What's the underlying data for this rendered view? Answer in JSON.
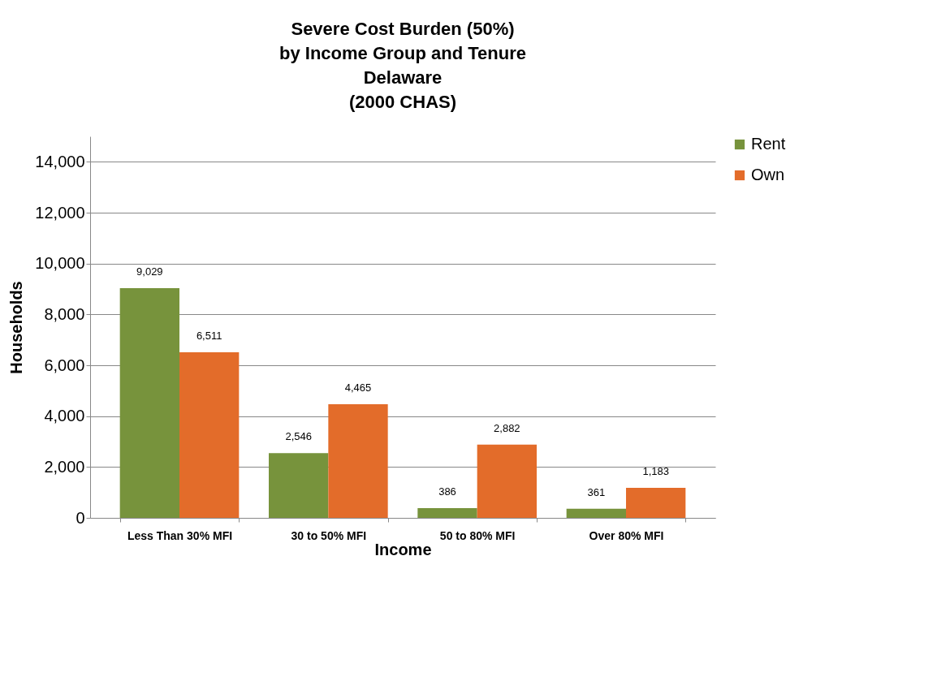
{
  "chart_data": {
    "type": "bar",
    "title": "Severe Cost Burden (50%)\nby Income Group and Tenure\nDelaware\n(2000 CHAS)",
    "xlabel": "Income",
    "ylabel": "Households",
    "categories": [
      "Less Than 30% MFI",
      "30 to 50% MFI",
      "50 to 80% MFI",
      "Over 80% MFI"
    ],
    "series": [
      {
        "name": "Rent",
        "color": "#77933c",
        "values": [
          9029,
          2546,
          386,
          361
        ],
        "value_labels": [
          "9,029",
          "2,546",
          "386",
          "361"
        ]
      },
      {
        "name": "Own",
        "color": "#e36c2a",
        "values": [
          6511,
          4465,
          2882,
          1183
        ],
        "value_labels": [
          "6,511",
          "4,465",
          "2,882",
          "1,183"
        ]
      }
    ],
    "ylim": [
      0,
      15000
    ],
    "yticks": [
      0,
      {
        "value": 2000,
        "label": "2,000"
      },
      {
        "value": 4000,
        "label": "4,000"
      },
      {
        "value": 6000,
        "label": "6,000"
      },
      {
        "value": 8000,
        "label": "8,000"
      },
      {
        "value": 10000,
        "label": "10,000"
      },
      {
        "value": 12000,
        "label": "12,000"
      },
      {
        "value": 14000,
        "label": "14,000"
      }
    ],
    "grid": "y",
    "legend": "right"
  }
}
